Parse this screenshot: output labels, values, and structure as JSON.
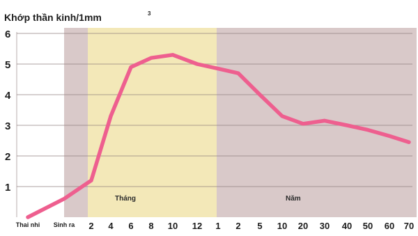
{
  "chart_data": {
    "type": "line",
    "title": "Khớp thần kinh/1mm",
    "title_sup": "3",
    "ylim": [
      0,
      6
    ],
    "y_ticks": [
      "1",
      "2",
      "3",
      "4",
      "5",
      "6"
    ],
    "grid": true,
    "categories": [
      "Thai nhi",
      "Sinh ra",
      "2",
      "4",
      "6",
      "8",
      "10",
      "12",
      "1",
      "2",
      "5",
      "10",
      "20",
      "30",
      "40",
      "50",
      "60",
      "70"
    ],
    "series": [
      {
        "values": [
          0,
          0.6,
          1.2,
          3.3,
          4.9,
          5.2,
          5.3,
          5.0,
          4.85,
          4.7,
          4.0,
          3.3,
          3.05,
          3.15,
          3.0,
          2.85,
          2.65,
          2.45
        ]
      }
    ],
    "bands": [
      {
        "label": "",
        "from": 1,
        "to": 2,
        "color": "#d9c9c9"
      },
      {
        "label": "Tháng",
        "from": 2,
        "to": 8,
        "color": "#f3e8b8"
      },
      {
        "label": "Năm",
        "from": 8,
        "to": 17,
        "color": "#d9c9c9"
      }
    ],
    "line_color": "#ee5f8f"
  }
}
